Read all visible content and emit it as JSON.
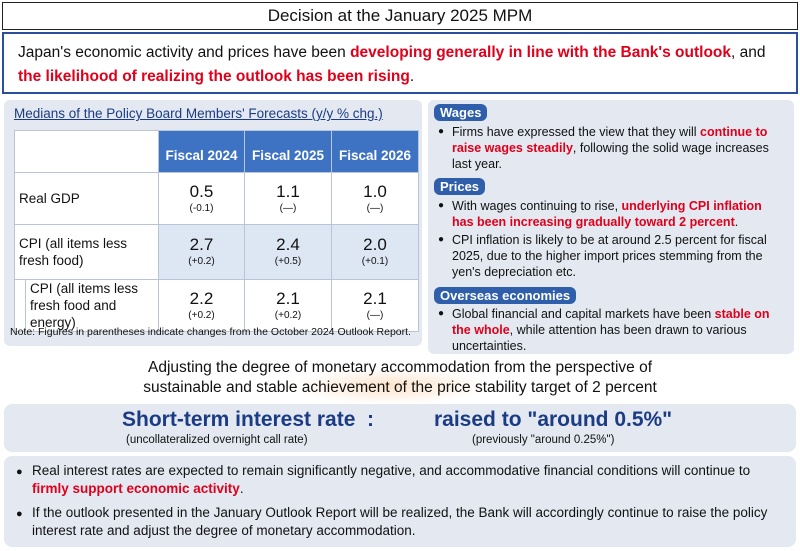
{
  "header": {
    "title": "Decision at the January 2025 MPM"
  },
  "summary": {
    "part1": "Japan's economic activity and prices have been ",
    "highlight1": "developing generally in line with the Bank's outlook",
    "part2": ", and",
    "highlight2": "the likelihood of realizing the outlook has been rising",
    "part3": "."
  },
  "forecast": {
    "title": "Medians of the Policy Board Members' Forecasts (y/y % chg.)",
    "columns": [
      "Fiscal 2024",
      "Fiscal 2025",
      "Fiscal 2026"
    ],
    "rows": [
      {
        "label_line1": "Real GDP",
        "label_line2": "",
        "values": [
          "0.5",
          "1.1",
          "1.0"
        ],
        "changes": [
          "(-0.1)",
          "(—)",
          "(—)"
        ]
      },
      {
        "label_line1": "CPI (all items less",
        "label_line2": "fresh food)",
        "values": [
          "2.7",
          "2.4",
          "2.0"
        ],
        "changes": [
          "(+0.2)",
          "(+0.5)",
          "(+0.1)"
        ]
      },
      {
        "label_line1": "CPI (all items less",
        "label_line2": "fresh food and energy)",
        "values": [
          "2.2",
          "2.1",
          "2.1"
        ],
        "changes": [
          "(+0.2)",
          "(+0.2)",
          "(—)"
        ]
      }
    ],
    "note": "Note: Figures in parentheses indicate changes from the October 2024 Outlook Report."
  },
  "wages": {
    "tag": "Wages",
    "b1_part1": "Firms have expressed the view that they will ",
    "b1_highlight": "continue to raise wages steadily",
    "b1_part2": ", following the solid wage increases last year."
  },
  "prices": {
    "tag": "Prices",
    "b1_part1": "With wages continuing to rise, ",
    "b1_highlight": "underlying CPI inflation has been increasing gradually toward 2 percent",
    "b1_part2": ".",
    "b2": "CPI inflation is likely to be at around 2.5 percent for fiscal 2025, due to the higher import prices stemming from the yen's depreciation etc."
  },
  "overseas": {
    "tag": "Overseas economies",
    "b1_part1": "Global financial and capital markets have been ",
    "b1_highlight": "stable on the whole",
    "b1_part2": ", while attention has been drawn to various uncertainties."
  },
  "adjusting": {
    "line1": "Adjusting the degree of monetary accommodation from the perspective of",
    "line2": "sustainable and stable achievement of the price stability target of 2 percent"
  },
  "rate": {
    "name": "Short-term interest rate  :",
    "sub": "(uncollateralized overnight call rate)",
    "value": "raised to \"around 0.5%\"",
    "previous": "(previously \"around 0.25%\")"
  },
  "bottom": {
    "b1_part1": "Real interest rates are expected to remain significantly negative, and accommodative financial conditions will continue to ",
    "b1_highlight": "firmly support economic activity",
    "b1_part2": ".",
    "b2": "If the outlook presented in the January Outlook Report will be realized, the Bank will accordingly continue to raise the policy interest rate and adjust the degree of monetary accommodation."
  },
  "colors": {
    "accent": "#2f5fab",
    "highlight": "#e0001b",
    "panel": "#e3e8f1",
    "table_header": "#3e73c4"
  }
}
